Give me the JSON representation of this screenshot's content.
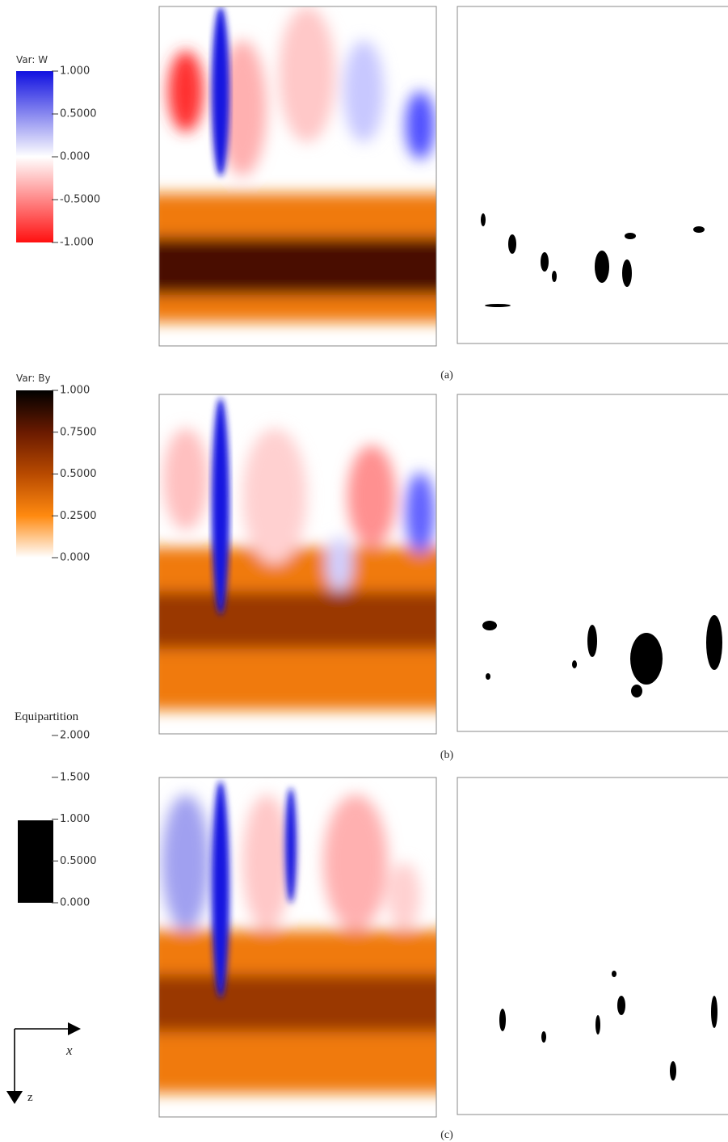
{
  "colorbars": [
    {
      "title": "Var: W",
      "ticks": [
        "1.000",
        "0.5000",
        "0.000",
        "-0.5000",
        "-1.000"
      ]
    },
    {
      "title": "Var: By",
      "ticks": [
        "1.000",
        "0.7500",
        "0.5000",
        "0.2500",
        "0.000"
      ]
    },
    {
      "title": "Equipartition",
      "ticks": [
        "2.000",
        "1.500",
        "1.000",
        "0.5000",
        "0.000"
      ]
    }
  ],
  "axes": {
    "x": "x",
    "z": "z"
  },
  "panels": [
    {
      "caption": "(a)"
    },
    {
      "caption": "(b)"
    },
    {
      "caption": "(c)"
    }
  ]
}
